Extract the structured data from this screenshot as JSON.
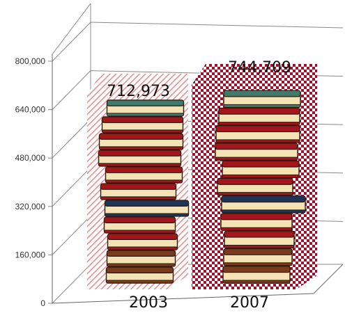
{
  "chart_data": {
    "type": "bar",
    "categories": [
      "2003",
      "2007"
    ],
    "series": [
      {
        "values": [
          712973,
          744709
        ]
      }
    ],
    "data_labels": [
      "712,973",
      "744,709"
    ],
    "ylim": [
      0,
      800000
    ],
    "yticks": [
      0,
      160000,
      320000,
      480000,
      640000,
      800000
    ],
    "ytick_labels": [
      "0",
      "160,000",
      "320,000",
      "480,000",
      "640,000",
      "800,000"
    ],
    "grid": true,
    "style": "3d-pictograph-book-stacks",
    "colors": {
      "bar_2003_hatch": "#e88a8a",
      "bar_2007_check": "#a0102c",
      "grid": "#888888",
      "book_red": "#a3161c",
      "book_green": "#3f7a6a",
      "book_blue": "#1f3558",
      "book_pages": "#f3e3b5",
      "book_brown": "#7a3a1c"
    }
  }
}
